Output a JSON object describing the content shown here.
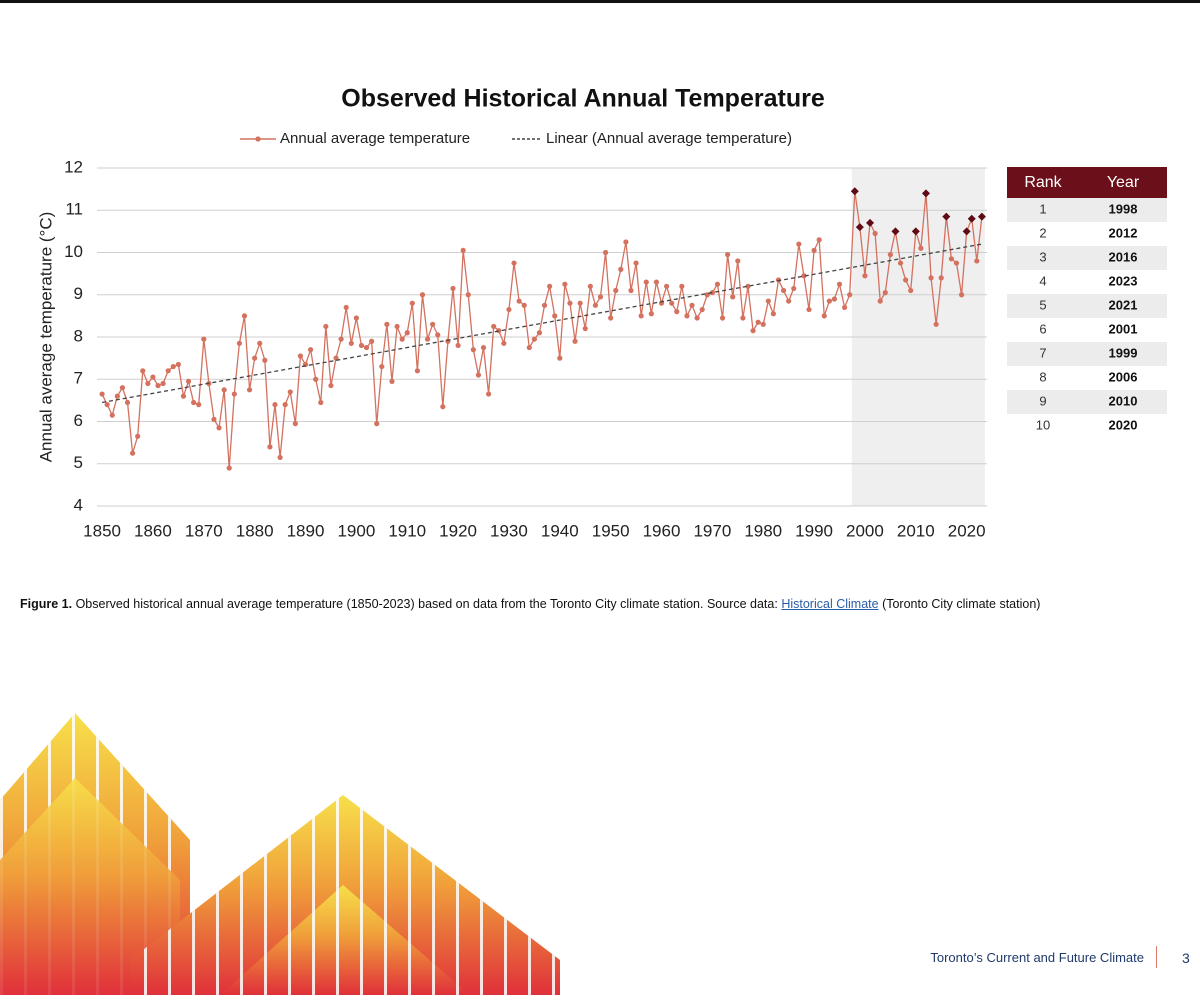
{
  "chart_data": {
    "type": "line",
    "title": "Observed Historical Annual Temperature",
    "y_label": "Annual average temperature (°C)",
    "xlim": [
      1849,
      2024
    ],
    "ylim": [
      4,
      12
    ],
    "xticks": [
      1850,
      1860,
      1870,
      1880,
      1890,
      1900,
      1910,
      1920,
      1930,
      1940,
      1950,
      1960,
      1970,
      1980,
      1990,
      2000,
      2010,
      2020
    ],
    "yticks": [
      4,
      5,
      6,
      7,
      8,
      9,
      10,
      11,
      12
    ],
    "grid": true,
    "shaded_xrange": [
      1998,
      2023
    ],
    "highlight_color": "#5e0b16",
    "series": [
      {
        "name": "Annual average temperature",
        "color": "#d4715f",
        "x": [
          1850,
          1851,
          1852,
          1853,
          1854,
          1855,
          1856,
          1857,
          1858,
          1859,
          1860,
          1861,
          1862,
          1863,
          1864,
          1865,
          1866,
          1867,
          1868,
          1869,
          1870,
          1871,
          1872,
          1873,
          1874,
          1875,
          1876,
          1877,
          1878,
          1879,
          1880,
          1881,
          1882,
          1883,
          1884,
          1885,
          1886,
          1887,
          1888,
          1889,
          1890,
          1891,
          1892,
          1893,
          1894,
          1895,
          1896,
          1897,
          1898,
          1899,
          1900,
          1901,
          1902,
          1903,
          1904,
          1905,
          1906,
          1907,
          1908,
          1909,
          1910,
          1911,
          1912,
          1913,
          1914,
          1915,
          1916,
          1917,
          1918,
          1919,
          1920,
          1921,
          1922,
          1923,
          1924,
          1925,
          1926,
          1927,
          1928,
          1929,
          1930,
          1931,
          1932,
          1933,
          1934,
          1935,
          1936,
          1937,
          1938,
          1939,
          1940,
          1941,
          1942,
          1943,
          1944,
          1945,
          1946,
          1947,
          1948,
          1949,
          1950,
          1951,
          1952,
          1953,
          1954,
          1955,
          1956,
          1957,
          1958,
          1959,
          1960,
          1961,
          1962,
          1963,
          1964,
          1965,
          1966,
          1967,
          1968,
          1969,
          1970,
          1971,
          1972,
          1973,
          1974,
          1975,
          1976,
          1977,
          1978,
          1979,
          1980,
          1981,
          1982,
          1983,
          1984,
          1985,
          1986,
          1987,
          1988,
          1989,
          1990,
          1991,
          1992,
          1993,
          1994,
          1995,
          1996,
          1997,
          1998,
          1999,
          2000,
          2001,
          2002,
          2003,
          2004,
          2005,
          2006,
          2007,
          2008,
          2009,
          2010,
          2011,
          2012,
          2013,
          2014,
          2015,
          2016,
          2017,
          2018,
          2019,
          2020,
          2021,
          2022,
          2023
        ],
        "values": [
          6.65,
          6.4,
          6.15,
          6.6,
          6.8,
          6.45,
          5.25,
          5.65,
          7.2,
          6.9,
          7.05,
          6.85,
          6.9,
          7.2,
          7.3,
          7.35,
          6.6,
          6.95,
          6.45,
          6.4,
          7.95,
          6.9,
          6.05,
          5.85,
          6.75,
          4.9,
          6.65,
          7.85,
          8.5,
          6.75,
          7.5,
          7.85,
          7.45,
          5.4,
          6.4,
          5.15,
          6.4,
          6.7,
          5.95,
          7.55,
          7.35,
          7.7,
          7.0,
          6.45,
          8.25,
          6.85,
          7.5,
          7.95,
          8.7,
          7.85,
          8.45,
          7.8,
          7.75,
          7.9,
          5.95,
          7.3,
          8.3,
          6.95,
          8.25,
          7.95,
          8.1,
          8.8,
          7.2,
          9.0,
          7.95,
          8.3,
          8.05,
          6.35,
          7.9,
          9.15,
          7.8,
          10.05,
          9.0,
          7.7,
          7.1,
          7.75,
          6.65,
          8.25,
          8.15,
          7.85,
          8.65,
          9.75,
          8.85,
          8.75,
          7.75,
          7.95,
          8.1,
          8.75,
          9.2,
          8.5,
          7.5,
          9.25,
          8.8,
          7.9,
          8.8,
          8.2,
          9.2,
          8.75,
          8.95,
          10.0,
          8.45,
          9.1,
          9.6,
          10.25,
          9.1,
          9.75,
          8.5,
          9.3,
          8.55,
          9.3,
          8.8,
          9.2,
          8.8,
          8.6,
          9.2,
          8.5,
          8.75,
          8.45,
          8.65,
          9.0,
          9.05,
          9.25,
          8.45,
          9.95,
          8.95,
          9.8,
          8.45,
          9.2,
          8.15,
          8.35,
          8.3,
          8.85,
          8.55,
          9.35,
          9.1,
          8.85,
          9.15,
          10.2,
          9.45,
          8.65,
          10.05,
          10.3,
          8.5,
          8.85,
          8.9,
          9.25,
          8.7,
          9.0,
          11.45,
          10.6,
          9.45,
          10.7,
          10.45,
          8.85,
          9.05,
          9.95,
          10.5,
          9.75,
          9.35,
          9.1,
          10.5,
          10.1,
          11.4,
          9.4,
          8.3,
          9.4,
          10.85,
          9.85,
          9.75,
          9.0,
          10.5,
          10.8,
          9.8,
          10.85
        ]
      },
      {
        "name": "Linear (Annual average temperature)",
        "color": "#444444",
        "dash": true,
        "x": [
          1850,
          2023
        ],
        "values": [
          6.45,
          10.2
        ]
      }
    ]
  },
  "table": {
    "header": [
      "Rank",
      "Year"
    ],
    "rows": [
      [
        1,
        1998
      ],
      [
        2,
        2012
      ],
      [
        3,
        2016
      ],
      [
        4,
        2023
      ],
      [
        5,
        2021
      ],
      [
        6,
        2001
      ],
      [
        7,
        1999
      ],
      [
        8,
        2006
      ],
      [
        9,
        2010
      ],
      [
        10,
        2020
      ]
    ]
  },
  "caption": {
    "label": "Figure 1.",
    "text": "Observed historical annual average temperature (1850-2023) based on data from the Toronto City climate station. Source data:",
    "link": "Historical Climate",
    "tail": "(Toronto City climate station)"
  },
  "footer": {
    "title": "Toronto’s Current and Future Climate",
    "page": 3
  }
}
